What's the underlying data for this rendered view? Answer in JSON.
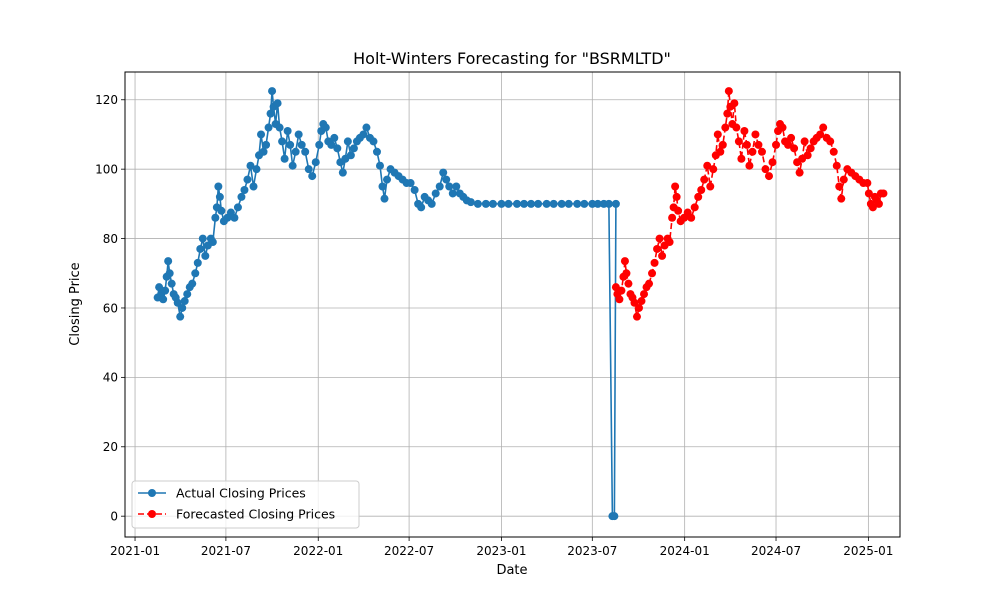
{
  "chart_data": {
    "type": "line",
    "title": "Holt-Winters Forecasting for \"BSRMLTD\"",
    "xlabel": "Date",
    "ylabel": "Closing Price",
    "grid": true,
    "legend_position": "lower-left",
    "xlim": [
      "2020-12-12",
      "2025-03-05"
    ],
    "ylim": [
      -6,
      128
    ],
    "x_ticks": [
      "2021-01",
      "2021-07",
      "2022-01",
      "2022-07",
      "2023-01",
      "2023-07",
      "2024-01",
      "2024-07",
      "2025-01"
    ],
    "y_ticks": [
      0,
      20,
      40,
      60,
      80,
      100,
      120
    ],
    "series": [
      {
        "name": "Actual Closing Prices",
        "color": "#1f77b4",
        "line_style": "solid",
        "marker": "circle",
        "points": [
          [
            "2021-02-15",
            63
          ],
          [
            "2021-02-18",
            66
          ],
          [
            "2021-02-22",
            64
          ],
          [
            "2021-02-26",
            62.5
          ],
          [
            "2021-03-02",
            65
          ],
          [
            "2021-03-05",
            69
          ],
          [
            "2021-03-08",
            73.5
          ],
          [
            "2021-03-11",
            70
          ],
          [
            "2021-03-15",
            67
          ],
          [
            "2021-03-19",
            64
          ],
          [
            "2021-03-23",
            63
          ],
          [
            "2021-03-27",
            61.5
          ],
          [
            "2021-04-01",
            57.5
          ],
          [
            "2021-04-05",
            60
          ],
          [
            "2021-04-10",
            62
          ],
          [
            "2021-04-15",
            64
          ],
          [
            "2021-04-20",
            66
          ],
          [
            "2021-04-25",
            67
          ],
          [
            "2021-05-01",
            70
          ],
          [
            "2021-05-06",
            73
          ],
          [
            "2021-05-11",
            77
          ],
          [
            "2021-05-16",
            80
          ],
          [
            "2021-05-21",
            75
          ],
          [
            "2021-05-26",
            78
          ],
          [
            "2021-06-01",
            80
          ],
          [
            "2021-06-05",
            79
          ],
          [
            "2021-06-10",
            86
          ],
          [
            "2021-06-13",
            89
          ],
          [
            "2021-06-16",
            95
          ],
          [
            "2021-06-19",
            92
          ],
          [
            "2021-06-22",
            88
          ],
          [
            "2021-06-27",
            85
          ],
          [
            "2021-07-04",
            86
          ],
          [
            "2021-07-11",
            87.5
          ],
          [
            "2021-07-18",
            86
          ],
          [
            "2021-07-25",
            89
          ],
          [
            "2021-08-01",
            92
          ],
          [
            "2021-08-07",
            94
          ],
          [
            "2021-08-13",
            97
          ],
          [
            "2021-08-19",
            101
          ],
          [
            "2021-08-25",
            95
          ],
          [
            "2021-08-31",
            100
          ],
          [
            "2021-09-05",
            104
          ],
          [
            "2021-09-09",
            110
          ],
          [
            "2021-09-14",
            105
          ],
          [
            "2021-09-19",
            107
          ],
          [
            "2021-09-24",
            112
          ],
          [
            "2021-09-28",
            116
          ],
          [
            "2021-10-01",
            122.5
          ],
          [
            "2021-10-04",
            118
          ],
          [
            "2021-10-08",
            113
          ],
          [
            "2021-10-12",
            119
          ],
          [
            "2021-10-16",
            112
          ],
          [
            "2021-10-21",
            108
          ],
          [
            "2021-10-26",
            103
          ],
          [
            "2021-11-01",
            111
          ],
          [
            "2021-11-06",
            107
          ],
          [
            "2021-11-11",
            101
          ],
          [
            "2021-11-17",
            105
          ],
          [
            "2021-11-23",
            110
          ],
          [
            "2021-11-29",
            107
          ],
          [
            "2021-12-06",
            105
          ],
          [
            "2021-12-13",
            100
          ],
          [
            "2021-12-20",
            98
          ],
          [
            "2021-12-27",
            102
          ],
          [
            "2022-01-03",
            107
          ],
          [
            "2022-01-07",
            111
          ],
          [
            "2022-01-11",
            113
          ],
          [
            "2022-01-16",
            112
          ],
          [
            "2022-01-21",
            108
          ],
          [
            "2022-01-27",
            107
          ],
          [
            "2022-02-02",
            109
          ],
          [
            "2022-02-08",
            106
          ],
          [
            "2022-02-14",
            102
          ],
          [
            "2022-02-19",
            99
          ],
          [
            "2022-02-24",
            103
          ],
          [
            "2022-03-01",
            108
          ],
          [
            "2022-03-07",
            104
          ],
          [
            "2022-03-13",
            106
          ],
          [
            "2022-03-19",
            108
          ],
          [
            "2022-03-25",
            109
          ],
          [
            "2022-04-01",
            110
          ],
          [
            "2022-04-07",
            112
          ],
          [
            "2022-04-14",
            109
          ],
          [
            "2022-04-21",
            108
          ],
          [
            "2022-04-28",
            105
          ],
          [
            "2022-05-04",
            101
          ],
          [
            "2022-05-09",
            95
          ],
          [
            "2022-05-13",
            91.5
          ],
          [
            "2022-05-18",
            97
          ],
          [
            "2022-05-25",
            100
          ],
          [
            "2022-06-02",
            99
          ],
          [
            "2022-06-10",
            98
          ],
          [
            "2022-06-18",
            97
          ],
          [
            "2022-06-26",
            96
          ],
          [
            "2022-07-04",
            96
          ],
          [
            "2022-07-12",
            94
          ],
          [
            "2022-07-19",
            90
          ],
          [
            "2022-07-25",
            89
          ],
          [
            "2022-08-01",
            92
          ],
          [
            "2022-08-08",
            91
          ],
          [
            "2022-08-15",
            90
          ],
          [
            "2022-08-23",
            93
          ],
          [
            "2022-08-31",
            95
          ],
          [
            "2022-09-07",
            99
          ],
          [
            "2022-09-13",
            97
          ],
          [
            "2022-09-19",
            95
          ],
          [
            "2022-09-26",
            93
          ],
          [
            "2022-10-03",
            95
          ],
          [
            "2022-10-10",
            93
          ],
          [
            "2022-10-17",
            92
          ],
          [
            "2022-10-24",
            91
          ],
          [
            "2022-11-01",
            90.5
          ],
          [
            "2022-11-15",
            90
          ],
          [
            "2022-12-01",
            90
          ],
          [
            "2022-12-15",
            90
          ],
          [
            "2023-01-01",
            90
          ],
          [
            "2023-01-15",
            90
          ],
          [
            "2023-02-01",
            90
          ],
          [
            "2023-02-15",
            90
          ],
          [
            "2023-03-01",
            90
          ],
          [
            "2023-03-15",
            90
          ],
          [
            "2023-04-01",
            90
          ],
          [
            "2023-04-15",
            90
          ],
          [
            "2023-05-01",
            90
          ],
          [
            "2023-05-15",
            90
          ],
          [
            "2023-06-01",
            90
          ],
          [
            "2023-06-15",
            90
          ],
          [
            "2023-07-01",
            90
          ],
          [
            "2023-07-12",
            90
          ],
          [
            "2023-07-24",
            90
          ],
          [
            "2023-08-03",
            90
          ],
          [
            "2023-08-10",
            0
          ],
          [
            "2023-08-14",
            0
          ],
          [
            "2023-08-17",
            90
          ]
        ]
      },
      {
        "name": "Forecasted Closing Prices",
        "color": "#ff0000",
        "line_style": "dashed",
        "marker": "circle",
        "points": [
          [
            "2023-08-17",
            66
          ],
          [
            "2023-08-20",
            64
          ],
          [
            "2023-08-24",
            62.5
          ],
          [
            "2023-08-28",
            65
          ],
          [
            "2023-09-01",
            69
          ],
          [
            "2023-09-04",
            73.5
          ],
          [
            "2023-09-07",
            70
          ],
          [
            "2023-09-11",
            67
          ],
          [
            "2023-09-15",
            64
          ],
          [
            "2023-09-19",
            63
          ],
          [
            "2023-09-23",
            61.5
          ],
          [
            "2023-09-28",
            57.5
          ],
          [
            "2023-10-02",
            60
          ],
          [
            "2023-10-07",
            62
          ],
          [
            "2023-10-12",
            64
          ],
          [
            "2023-10-17",
            66
          ],
          [
            "2023-10-22",
            67
          ],
          [
            "2023-10-28",
            70
          ],
          [
            "2023-11-02",
            73
          ],
          [
            "2023-11-07",
            77
          ],
          [
            "2023-11-12",
            80
          ],
          [
            "2023-11-17",
            75
          ],
          [
            "2023-11-22",
            78
          ],
          [
            "2023-11-28",
            80
          ],
          [
            "2023-12-02",
            79
          ],
          [
            "2023-12-07",
            86
          ],
          [
            "2023-12-10",
            89
          ],
          [
            "2023-12-13",
            95
          ],
          [
            "2023-12-16",
            92
          ],
          [
            "2023-12-19",
            88
          ],
          [
            "2023-12-24",
            85
          ],
          [
            "2023-12-31",
            86
          ],
          [
            "2024-01-07",
            87.5
          ],
          [
            "2024-01-14",
            86
          ],
          [
            "2024-01-21",
            89
          ],
          [
            "2024-01-28",
            92
          ],
          [
            "2024-02-03",
            94
          ],
          [
            "2024-02-09",
            97
          ],
          [
            "2024-02-15",
            101
          ],
          [
            "2024-02-21",
            95
          ],
          [
            "2024-02-27",
            100
          ],
          [
            "2024-03-03",
            104
          ],
          [
            "2024-03-07",
            110
          ],
          [
            "2024-03-12",
            105
          ],
          [
            "2024-03-17",
            107
          ],
          [
            "2024-03-22",
            112
          ],
          [
            "2024-03-26",
            116
          ],
          [
            "2024-03-29",
            122.5
          ],
          [
            "2024-04-01",
            118
          ],
          [
            "2024-04-05",
            113
          ],
          [
            "2024-04-09",
            119
          ],
          [
            "2024-04-13",
            112
          ],
          [
            "2024-04-18",
            108
          ],
          [
            "2024-04-23",
            103
          ],
          [
            "2024-04-29",
            111
          ],
          [
            "2024-05-04",
            107
          ],
          [
            "2024-05-09",
            101
          ],
          [
            "2024-05-15",
            105
          ],
          [
            "2024-05-21",
            110
          ],
          [
            "2024-05-27",
            107
          ],
          [
            "2024-06-03",
            105
          ],
          [
            "2024-06-10",
            100
          ],
          [
            "2024-06-17",
            98
          ],
          [
            "2024-06-24",
            102
          ],
          [
            "2024-07-01",
            107
          ],
          [
            "2024-07-05",
            111
          ],
          [
            "2024-07-09",
            113
          ],
          [
            "2024-07-14",
            112
          ],
          [
            "2024-07-19",
            108
          ],
          [
            "2024-07-25",
            107
          ],
          [
            "2024-07-31",
            109
          ],
          [
            "2024-08-06",
            106
          ],
          [
            "2024-08-12",
            102
          ],
          [
            "2024-08-17",
            99
          ],
          [
            "2024-08-22",
            103
          ],
          [
            "2024-08-27",
            108
          ],
          [
            "2024-09-02",
            104
          ],
          [
            "2024-09-08",
            106
          ],
          [
            "2024-09-14",
            108
          ],
          [
            "2024-09-20",
            109
          ],
          [
            "2024-09-27",
            110
          ],
          [
            "2024-10-03",
            112
          ],
          [
            "2024-10-10",
            109
          ],
          [
            "2024-10-17",
            108
          ],
          [
            "2024-10-24",
            105
          ],
          [
            "2024-10-30",
            101
          ],
          [
            "2024-11-04",
            95
          ],
          [
            "2024-11-08",
            91.5
          ],
          [
            "2024-11-13",
            97
          ],
          [
            "2024-11-20",
            100
          ],
          [
            "2024-11-28",
            99
          ],
          [
            "2024-12-06",
            98
          ],
          [
            "2024-12-14",
            97
          ],
          [
            "2024-12-22",
            96
          ],
          [
            "2024-12-30",
            96
          ],
          [
            "2025-01-02",
            93
          ],
          [
            "2025-01-06",
            90
          ],
          [
            "2025-01-10",
            89
          ],
          [
            "2025-01-14",
            92
          ],
          [
            "2025-01-18",
            91
          ],
          [
            "2025-01-22",
            90
          ],
          [
            "2025-01-26",
            93
          ],
          [
            "2025-01-31",
            93
          ]
        ]
      }
    ]
  }
}
